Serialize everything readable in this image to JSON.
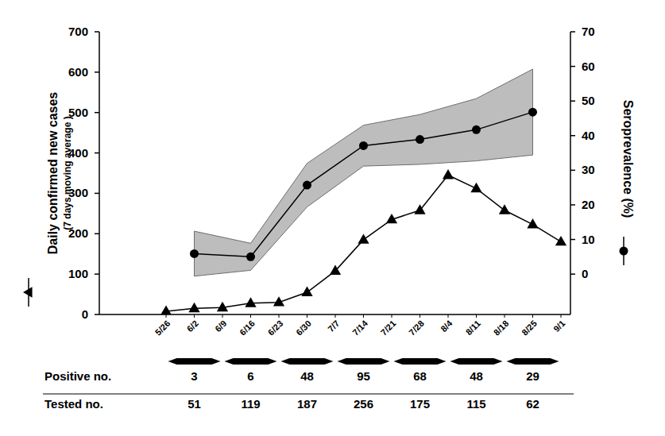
{
  "chart_data": {
    "type": "line",
    "y_label": "Daily confirmed new cases",
    "y_label_sub": "(7 days moving average )",
    "y2_label": "Seroprevalence (%)",
    "x": [
      "5/26",
      "6/2",
      "6/9",
      "6/16",
      "6/23",
      "6/30",
      "7/7",
      "7/14",
      "7/21",
      "7/28",
      "8/4",
      "8/11",
      "8/18",
      "8/25",
      "9/1"
    ],
    "ylim": [
      0,
      700
    ],
    "yticks": [
      0,
      100,
      200,
      300,
      400,
      500,
      600,
      700
    ],
    "y2lim": [
      -11.67,
      70
    ],
    "y2ticks": [
      0,
      10,
      20,
      30,
      40,
      50,
      60,
      70
    ],
    "series": [
      {
        "color": "#000000",
        "marker": "triangle",
        "line_style": "solid",
        "values": [
          8,
          15,
          17,
          28,
          30,
          55,
          108,
          185,
          235,
          258,
          345,
          312,
          258,
          223,
          180
        ]
      },
      {
        "axis": "y2",
        "color": "#000000",
        "marker": "circle",
        "line_style": "solid",
        "values": [
          null,
          5.9,
          null,
          5.0,
          null,
          25.7,
          null,
          37.1,
          null,
          38.9,
          null,
          41.7,
          null,
          46.8,
          null
        ],
        "ci_lower": [
          null,
          -0.6,
          null,
          1.1,
          null,
          19.4,
          null,
          31.2,
          null,
          31.7,
          null,
          32.7,
          null,
          34.4,
          null
        ],
        "ci_upper": [
          null,
          12.4,
          null,
          8.9,
          null,
          32.0,
          null,
          43.0,
          null,
          46.1,
          null,
          50.7,
          null,
          59.2,
          null
        ]
      }
    ],
    "table": {
      "rows": [
        {
          "label": "Positive no.",
          "values": [
            null,
            3,
            null,
            6,
            null,
            48,
            null,
            95,
            null,
            68,
            null,
            48,
            null,
            29,
            null
          ]
        },
        {
          "label": "Tested no.",
          "values": [
            null,
            51,
            null,
            119,
            null,
            187,
            null,
            256,
            null,
            175,
            null,
            115,
            null,
            62,
            null
          ]
        }
      ]
    }
  }
}
